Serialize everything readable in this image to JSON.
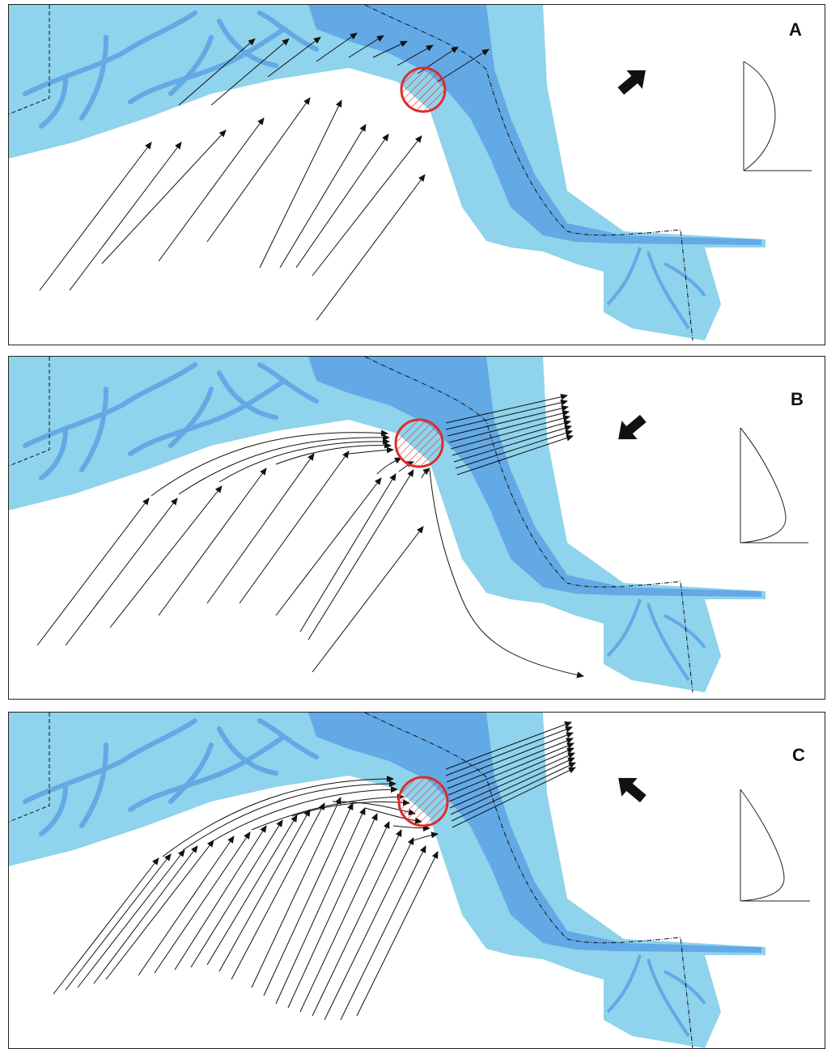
{
  "figure": {
    "panels": [
      {
        "id": "a",
        "label": "A",
        "wind": "northeast",
        "profile": "symmetric"
      },
      {
        "id": "b",
        "label": "B",
        "wind": "southwest",
        "profile": "bottom-skewed"
      },
      {
        "id": "c",
        "label": "C",
        "wind": "northwest",
        "profile": "bottom-skewed"
      }
    ],
    "colors": {
      "shallow_water": "#8fd3ec",
      "deep_channel": "#63a9e6",
      "study_site": "#dd2c2c",
      "flow_lines": "#111111"
    }
  }
}
